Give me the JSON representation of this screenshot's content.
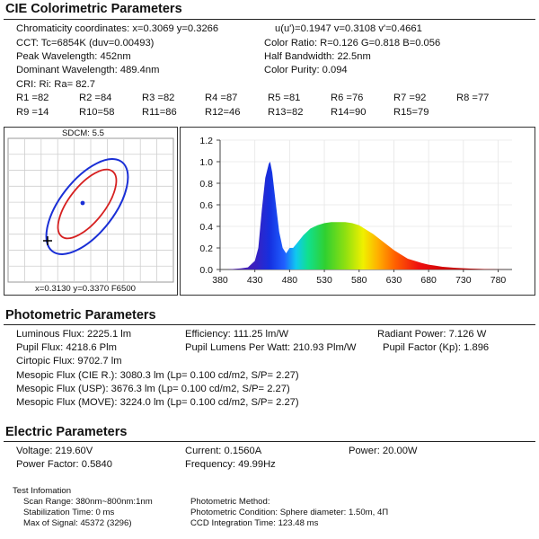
{
  "cie": {
    "title": "CIE Colorimetric Parameters",
    "chromaticity": "Chromaticity coordinates: x=0.3069 y=0.3266",
    "uv": "u(u')=0.1947 v=0.3108 v'=0.4661",
    "cct": "CCT: Tc=6854K (duv=0.00493)",
    "color_ratio": "Color Ratio: R=0.126  G=0.818  B=0.056",
    "peak": "Peak Wavelength: 452nm",
    "half_bw": "Half Bandwidth: 22.5nm",
    "dominant": "Dominant Wavelength: 489.4nm",
    "purity": "Color Purity: 0.094",
    "cri": "CRI: Ri: Ra= 82.7",
    "r_values": [
      [
        "R1 =82",
        "R2 =84",
        "R3 =82",
        "R4 =87",
        "R5 =81",
        "R6 =76",
        "R7 =92",
        "R8 =77"
      ],
      [
        "R9 =14",
        "R10=58",
        "R11=86",
        "R12=46",
        "R13=82",
        "R14=90",
        "R15=79"
      ]
    ]
  },
  "chromaticity_plot": {
    "sdcm_label": "SDCM:   5.5",
    "footer": "x=0.3130  y=0.3370  F6500",
    "colors": {
      "outer": "#1a2fd6",
      "inner": "#d62020",
      "point": "#1a2fd6",
      "cross": "#000000"
    }
  },
  "chart_data": {
    "type": "line",
    "x_ticks": [
      380,
      430,
      480,
      530,
      580,
      630,
      680,
      730,
      780
    ],
    "y_ticks": [
      "0.0",
      "0.2",
      "0.4",
      "0.6",
      "0.8",
      "1.0",
      "1.2"
    ],
    "xlim": [
      380,
      800
    ],
    "ylim": [
      0,
      1.2
    ],
    "x": [
      380,
      390,
      400,
      410,
      420,
      430,
      435,
      440,
      445,
      450,
      452,
      455,
      460,
      465,
      470,
      475,
      480,
      485,
      490,
      500,
      510,
      520,
      530,
      540,
      550,
      560,
      570,
      580,
      590,
      600,
      610,
      620,
      630,
      640,
      650,
      660,
      670,
      680,
      690,
      700,
      720,
      740,
      760,
      780,
      800
    ],
    "y": [
      0.0,
      0.0,
      0.005,
      0.01,
      0.02,
      0.08,
      0.2,
      0.55,
      0.85,
      0.98,
      1.0,
      0.9,
      0.62,
      0.35,
      0.2,
      0.15,
      0.2,
      0.2,
      0.24,
      0.32,
      0.38,
      0.41,
      0.43,
      0.44,
      0.44,
      0.44,
      0.43,
      0.41,
      0.37,
      0.33,
      0.28,
      0.23,
      0.18,
      0.14,
      0.1,
      0.08,
      0.06,
      0.045,
      0.035,
      0.025,
      0.015,
      0.008,
      0.004,
      0.001,
      0.0
    ]
  },
  "photometric": {
    "title": "Photometric Parameters",
    "luminous_flux": "Luminous Flux: 2225.1 lm",
    "efficiency": "Efficiency: 111.25 lm/W",
    "radiant_power": "Radiant Power: 7.126 W",
    "pupil_flux": "Pupil Flux: 4218.6 Plm",
    "pupil_lpw": "Pupil Lumens Per Watt: 210.93 Plm/W",
    "pupil_factor": "Pupil Factor (Kp): 1.896",
    "cirtopic": "Cirtopic Flux: 9702.7 lm",
    "mesopic_cie": "Mesopic Flux (CIE R.): 3080.3 lm (Lp= 0.100 cd/m2, S/P= 2.27)",
    "mesopic_usp": "Mesopic Flux (USP): 3676.3 lm (Lp= 0.100 cd/m2, S/P= 2.27)",
    "mesopic_move": "Mesopic Flux (MOVE): 3224.0 lm (Lp= 0.100 cd/m2, S/P= 2.27)"
  },
  "electric": {
    "title": "Electric Parameters",
    "voltage": "Voltage: 219.60V",
    "current": "Current: 0.1560A",
    "power": "Power: 20.00W",
    "power_factor": "Power Factor: 0.5840",
    "frequency": "Frequency: 49.99Hz"
  },
  "test_info": {
    "title": "Test Infomation",
    "scan_range": "Scan Range: 380nm~800nm:1nm",
    "stabilization": "Stabilization Time: 0 ms",
    "max_signal": "Max of Signal: 45372 (3296)",
    "method": "Photometric Method:",
    "condition": "Photometric Condition: Sphere diameter: 1.50m, 4Π",
    "integration": "CCD Integration Time: 123.48 ms"
  }
}
